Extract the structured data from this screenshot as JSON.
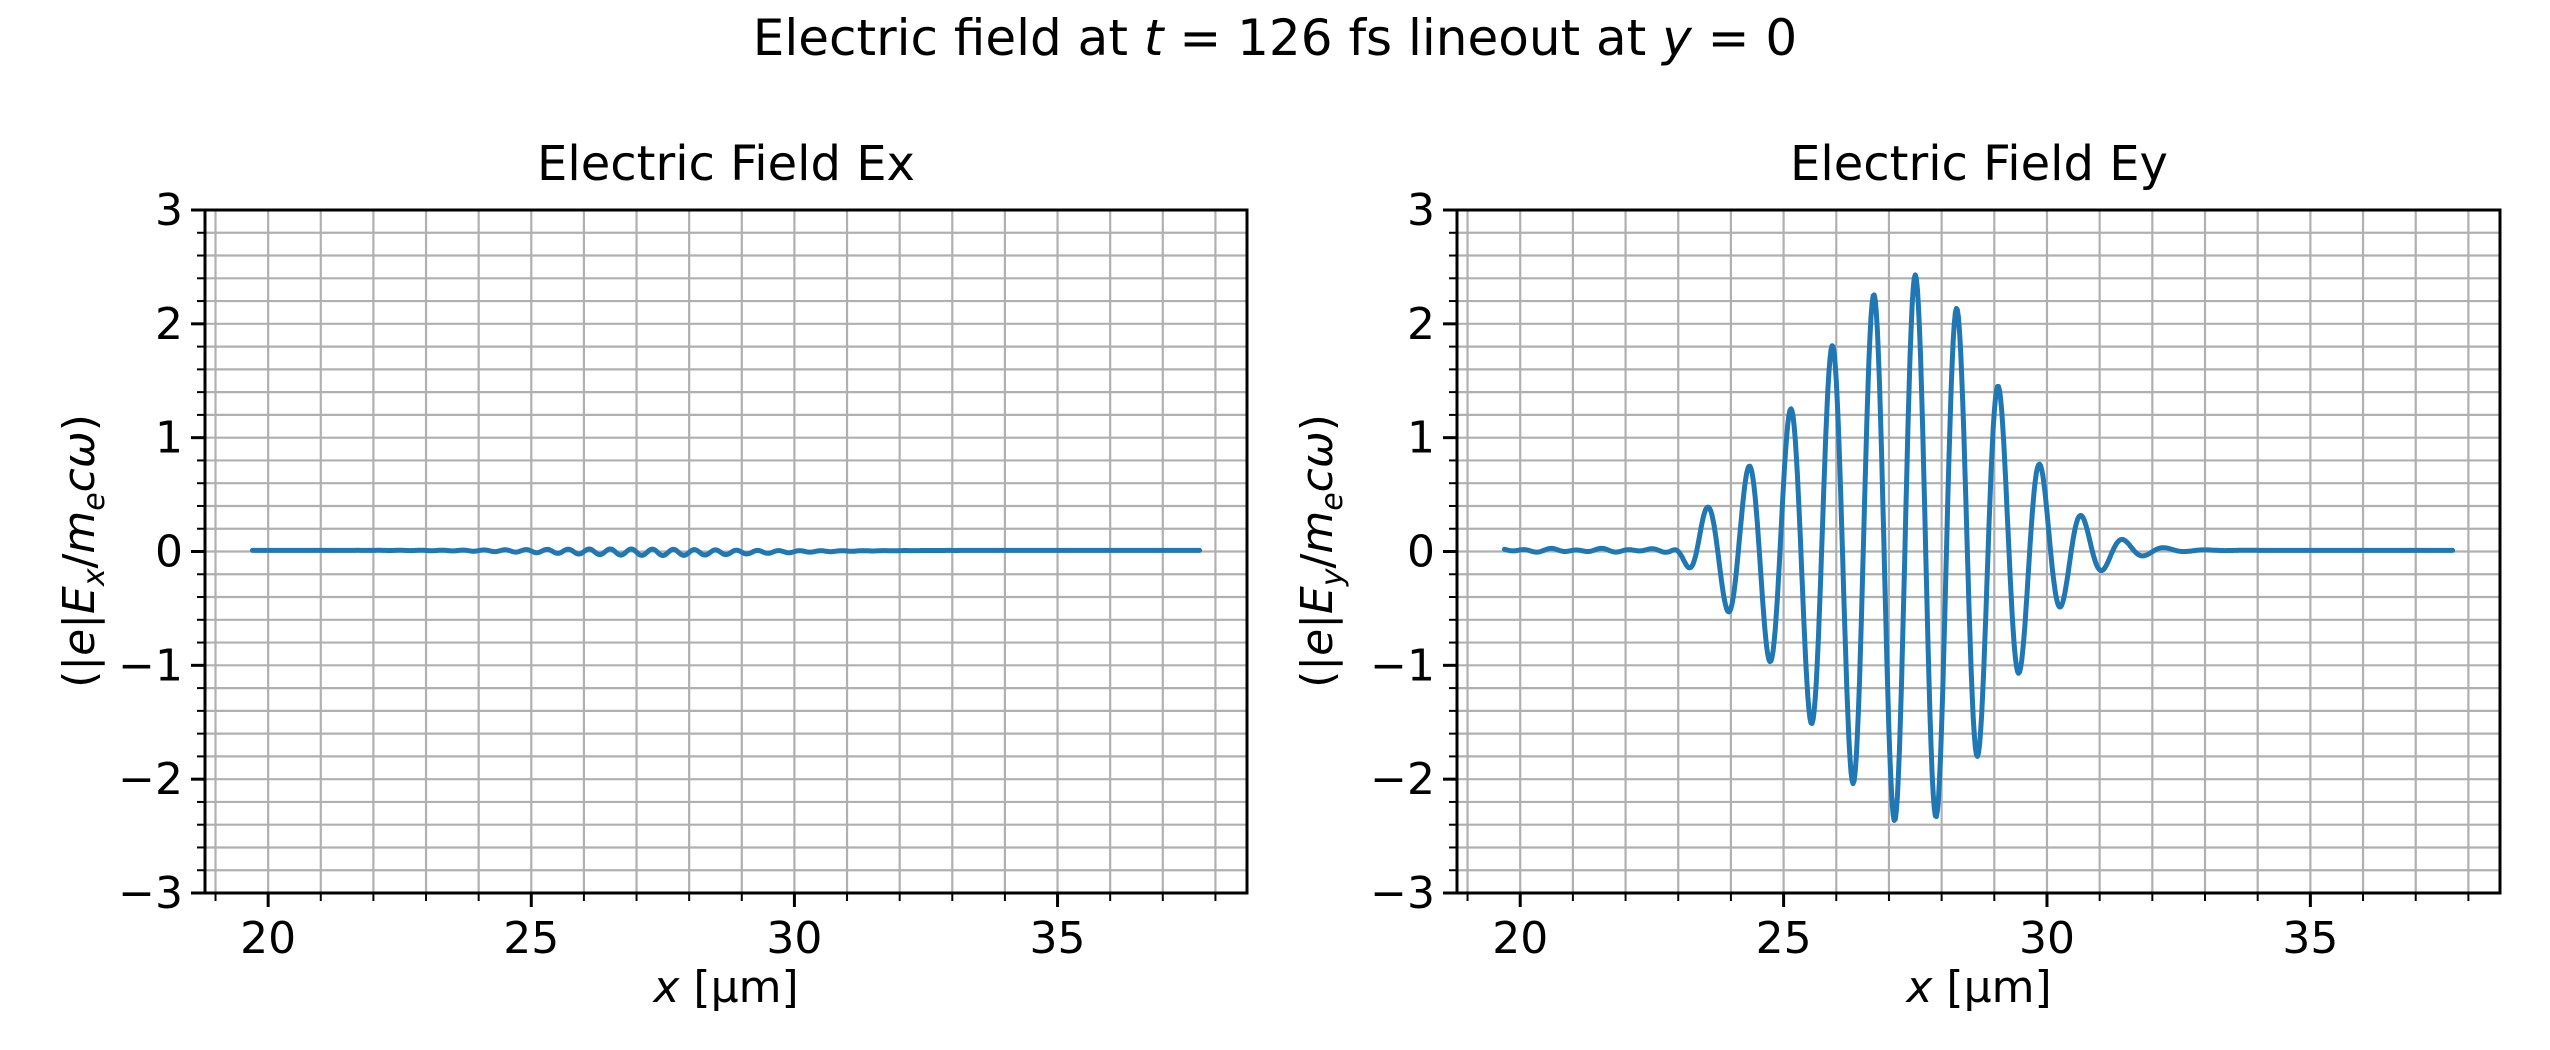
{
  "figure": {
    "suptitle": {
      "part1": "Electric field at ",
      "t_var": "t",
      "part2": " = 126 fs lineout at ",
      "y_var": "y",
      "part3": " = 0"
    }
  },
  "style": {
    "line_color": "#1f77b4",
    "grid_color": "#b0b0b0",
    "spine_color": "#000000",
    "background": "#ffffff"
  },
  "chart_data": [
    {
      "id": "ex",
      "type": "line",
      "title": "Electric Field Ex",
      "xlabel": {
        "var": "x",
        "rest": " [μm]"
      },
      "ylabel": {
        "p1": "(|",
        "e": "e",
        "p2": "|",
        "E": "E",
        "sub": "x",
        "slash": "/",
        "m": "m",
        "msub": "e",
        "c": "c",
        "omega": "ω",
        "close": ")"
      },
      "xlim": [
        18.8,
        38.6
      ],
      "ylim": [
        -3,
        3
      ],
      "x_major_ticks": [
        20,
        25,
        30,
        35
      ],
      "x_minor_step": 1,
      "y_major_ticks": [
        -3,
        -2,
        -1,
        0,
        1,
        2,
        3
      ],
      "y_minor_step": 0.2,
      "x_range_data": [
        19.7,
        37.7
      ],
      "line_color": "#1f77b4",
      "grid_color": "#b0b0b0",
      "description": "Ex is essentially zero along the whole lineout; only tiny ripples (|Ex| < 0.05) are visible between x ~ 24.5 and 31 um.",
      "series_model": {
        "kind": "flat_with_ripple",
        "baseline": 0.01,
        "baseline_dip": -0.018,
        "dip_center": 28.0,
        "dip_sigma": 2.0,
        "ripple_amplitude": 0.028,
        "ripple_center": 27.2,
        "ripple_sigma": 1.8,
        "ripple_wavelength": 0.4
      }
    },
    {
      "id": "ey",
      "type": "line",
      "title": "Electric Field Ey",
      "xlabel": {
        "var": "x",
        "rest": " [μm]"
      },
      "ylabel": {
        "p1": "(|",
        "e": "e",
        "p2": "|",
        "E": "E",
        "sub": "y",
        "slash": "/",
        "m": "m",
        "msub": "e",
        "c": "c",
        "omega": "ω",
        "close": ")"
      },
      "xlim": [
        18.8,
        38.6
      ],
      "ylim": [
        -3,
        3
      ],
      "x_major_ticks": [
        20,
        25,
        30,
        35
      ],
      "x_minor_step": 1,
      "y_major_ticks": [
        -3,
        -2,
        -1,
        0,
        1,
        2,
        3
      ],
      "y_minor_step": 0.2,
      "x_range_data": [
        19.7,
        37.7
      ],
      "line_color": "#1f77b4",
      "grid_color": "#b0b0b0",
      "description": "Ey shows a laser wave packet centered at x ~ 27.5 um, peak amplitude ~ 2.4, carrier wavelength ~ 0.8 um, spanning x ~ 23 to 31.5 um; flat zero outside.",
      "series_model": {
        "kind": "gaussian_wave_packet",
        "baseline": 0.01,
        "amplitude": 2.42,
        "center": 27.5,
        "sigma_left": 2.05,
        "sigma_right": 1.55,
        "wavelength": 0.79,
        "onset_start": 22.8,
        "onset_width": 0.7,
        "noise_amplitude": 0.018,
        "noise_end": 23.0
      },
      "extrema": {
        "peaks_x": [
          23.55,
          24.34,
          25.08,
          25.85,
          26.66,
          27.46,
          28.28,
          29.05,
          29.85,
          30.65,
          31.36
        ],
        "peaks_y": [
          0.36,
          0.8,
          1.37,
          1.88,
          2.28,
          2.4,
          2.08,
          1.45,
          0.81,
          0.28,
          0.04
        ],
        "dips_x": [
          23.95,
          24.66,
          25.44,
          26.23,
          27.06,
          27.84,
          28.65,
          29.45,
          30.24,
          31.0
        ],
        "dips_y": [
          -0.27,
          -0.84,
          -1.32,
          -1.76,
          -2.18,
          -2.35,
          -1.85,
          -1.15,
          -0.51,
          -0.12
        ]
      }
    }
  ]
}
